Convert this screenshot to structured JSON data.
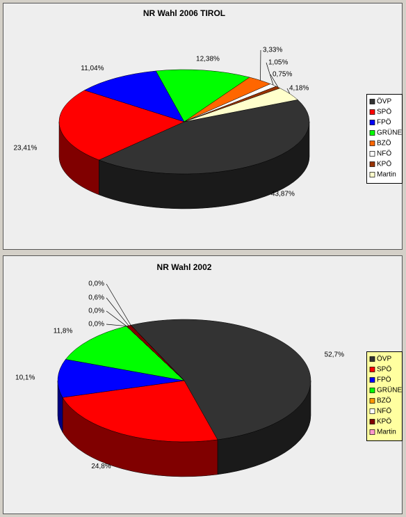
{
  "chart_data": [
    {
      "type": "pie",
      "title": "NR Wahl 2006 TIROL",
      "categories": [
        "ÖVP",
        "SPÖ",
        "FPÖ",
        "GRÜNE",
        "BZÖ",
        "NFÖ",
        "KPÖ",
        "Martin"
      ],
      "values": [
        43.87,
        23.41,
        11.04,
        12.38,
        3.33,
        1.05,
        0.75,
        4.18
      ],
      "value_labels": [
        "43,87%",
        "23,41%",
        "11,04%",
        "12,38%",
        "3,33%",
        "1,05%",
        "0,75%",
        "4,18%"
      ],
      "colors": [
        "#333333",
        "#ff0000",
        "#0000ff",
        "#00ff00",
        "#ff6600",
        "#ffffff",
        "#993300",
        "#ffffcc"
      ],
      "legend": "right"
    },
    {
      "type": "pie",
      "title": "NR Wahl 2002",
      "categories": [
        "ÖVP",
        "SPÖ",
        "FPÖ",
        "GRÜNE",
        "BZÖ",
        "NFÖ",
        "KPÖ",
        "Martin"
      ],
      "values": [
        52.7,
        24.8,
        10.1,
        11.8,
        0,
        0,
        0.6,
        0
      ],
      "value_labels": [
        "52,7%",
        "24,8%",
        "10,1%",
        "11,8%",
        "0,0%",
        "0,0%",
        "0,6%",
        "0,0%"
      ],
      "colors": [
        "#333333",
        "#ff0000",
        "#0000ff",
        "#00ff00",
        "#ff9900",
        "#ffffff",
        "#800000",
        "#ff99cc"
      ],
      "legend": "right"
    }
  ]
}
